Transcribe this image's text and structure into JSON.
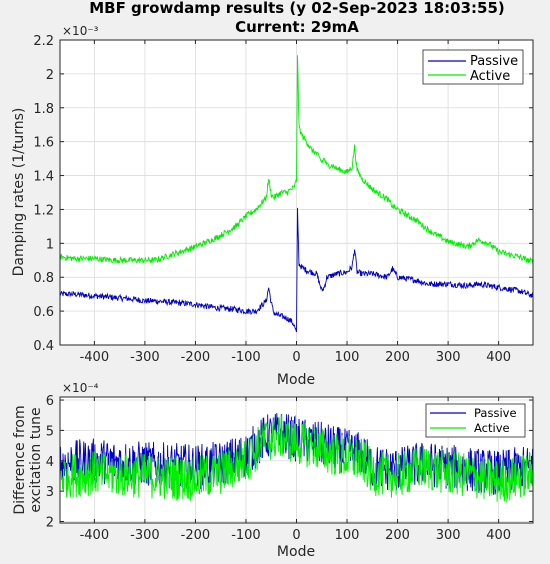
{
  "title": {
    "line1": "MBF growdamp results (y 02-Sep-2023 18:03:55)",
    "line2": "Current: 29mA"
  },
  "colors": {
    "passive": "#0000c8",
    "active": "#00ee00",
    "axes_bg": "#ffffff",
    "figure_bg": "#f0f0f0",
    "grid": "#dcdcdc",
    "axis": "#262626"
  },
  "chart_data": [
    {
      "type": "line",
      "title": "MBF growdamp results (y 02-Sep-2023 18:03:55) Current: 29mA",
      "xlabel": "Mode",
      "ylabel": "Damping rates (1/turns)",
      "exponent_label": "×10⁻³",
      "xlim": [
        -468,
        468
      ],
      "ylim": [
        0.4,
        2.2
      ],
      "x_ticks": [
        -400,
        -300,
        -200,
        -100,
        0,
        100,
        200,
        300,
        400
      ],
      "x_tick_labels": [
        "-400",
        "-300",
        "-200",
        "-100",
        "0",
        "100",
        "200",
        "300",
        "400"
      ],
      "y_ticks": [
        0.4,
        0.6,
        0.8,
        1,
        1.2,
        1.4,
        1.6,
        1.8,
        2,
        2.2
      ],
      "y_tick_labels": [
        "0.4",
        "0.6",
        "0.8",
        "1",
        "1.2",
        "1.4",
        "1.6",
        "1.8",
        "2",
        "2.2"
      ],
      "grid": true,
      "legend": {
        "position": "top-right",
        "entries": [
          "Passive",
          "Active"
        ]
      },
      "x": [
        -468,
        -440,
        -400,
        -360,
        -320,
        -300,
        -280,
        -240,
        -200,
        -160,
        -120,
        -100,
        -80,
        -60,
        -55,
        -50,
        -45,
        -40,
        -30,
        -20,
        -10,
        -5,
        0,
        2,
        5,
        10,
        20,
        30,
        40,
        50,
        55,
        60,
        70,
        80,
        100,
        110,
        115,
        120,
        130,
        150,
        180,
        190,
        200,
        240,
        260,
        300,
        340,
        360,
        380,
        400,
        440,
        468
      ],
      "series": [
        {
          "name": "Passive",
          "values": [
            0.7,
            0.7,
            0.69,
            0.68,
            0.67,
            0.66,
            0.66,
            0.65,
            0.64,
            0.62,
            0.61,
            0.6,
            0.6,
            0.66,
            0.74,
            0.65,
            0.59,
            0.58,
            0.57,
            0.56,
            0.54,
            0.52,
            0.47,
            1.2,
            0.88,
            0.86,
            0.84,
            0.83,
            0.82,
            0.72,
            0.74,
            0.8,
            0.81,
            0.82,
            0.83,
            0.86,
            0.97,
            0.83,
            0.82,
            0.82,
            0.8,
            0.85,
            0.8,
            0.78,
            0.76,
            0.76,
            0.75,
            0.76,
            0.75,
            0.74,
            0.72,
            0.69
          ]
        },
        {
          "name": "Active",
          "values": [
            0.92,
            0.91,
            0.91,
            0.9,
            0.9,
            0.9,
            0.9,
            0.94,
            0.98,
            1.03,
            1.1,
            1.16,
            1.2,
            1.27,
            1.38,
            1.29,
            1.27,
            1.28,
            1.3,
            1.3,
            1.32,
            1.33,
            1.37,
            2.12,
            1.69,
            1.64,
            1.6,
            1.55,
            1.53,
            1.48,
            1.5,
            1.46,
            1.46,
            1.44,
            1.42,
            1.45,
            1.57,
            1.43,
            1.38,
            1.32,
            1.26,
            1.22,
            1.2,
            1.13,
            1.08,
            1.01,
            0.98,
            1.02,
            1.0,
            0.95,
            0.92,
            0.89
          ]
        }
      ]
    },
    {
      "type": "line",
      "xlabel": "Mode",
      "ylabel_lines": [
        "Difference from",
        "excitation tune"
      ],
      "exponent_label": "×10⁻⁴",
      "xlim": [
        -468,
        468
      ],
      "ylim": [
        1.95,
        6.1
      ],
      "x_ticks": [
        -400,
        -300,
        -200,
        -100,
        0,
        100,
        200,
        300,
        400
      ],
      "x_tick_labels": [
        "-400",
        "-300",
        "-200",
        "-100",
        "0",
        "100",
        "200",
        "300",
        "400"
      ],
      "y_ticks": [
        2,
        3,
        4,
        5,
        6
      ],
      "y_tick_labels": [
        "2",
        "3",
        "4",
        "5",
        "6"
      ],
      "grid": true,
      "legend": {
        "position": "top-right",
        "entries": [
          "Passive",
          "Active"
        ]
      },
      "x": [
        -468,
        -400,
        -300,
        -200,
        -150,
        -100,
        -60,
        -30,
        0,
        30,
        60,
        100,
        130,
        150,
        200,
        250,
        300,
        350,
        400,
        468
      ],
      "series": [
        {
          "name": "Passive",
          "values": [
            3.9,
            4.0,
            3.9,
            3.8,
            3.9,
            4.2,
            4.8,
            4.9,
            4.7,
            4.6,
            4.5,
            4.3,
            4.2,
            3.8,
            3.7,
            3.9,
            3.8,
            3.7,
            3.6,
            3.8
          ]
        },
        {
          "name": "Active",
          "values": [
            3.5,
            3.6,
            3.5,
            3.4,
            3.6,
            4.0,
            4.7,
            4.8,
            4.6,
            4.5,
            4.3,
            4.1,
            4.0,
            3.6,
            3.5,
            3.8,
            3.6,
            3.5,
            3.3,
            3.6
          ]
        }
      ]
    }
  ]
}
